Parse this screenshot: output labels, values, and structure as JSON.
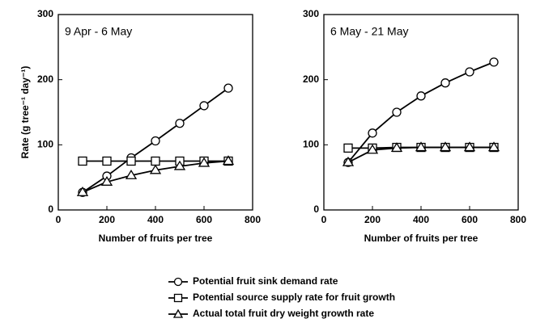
{
  "chart_data": [
    {
      "type": "line",
      "title": "9 Apr - 6 May",
      "xlabel": "Number of fruits per tree",
      "ylabel": "Rate (g tree⁻¹ day⁻¹)",
      "x": [
        100,
        200,
        300,
        400,
        500,
        600,
        700
      ],
      "series": [
        {
          "name": "Potential fruit sink demand rate",
          "color": "#000000",
          "marker": "circle",
          "values": [
            27,
            52,
            80,
            106,
            133,
            160,
            187
          ]
        },
        {
          "name": "Potential source supply rate for fruit growth",
          "color": "#000000",
          "marker": "square",
          "values": [
            75,
            75,
            75,
            75,
            75,
            75,
            75
          ]
        },
        {
          "name": "Actual total fruit dry weight growth rate",
          "color": "#000000",
          "marker": "triangle",
          "values": [
            27,
            43,
            53,
            61,
            67,
            72,
            75
          ]
        }
      ],
      "xlim": [
        0,
        800
      ],
      "xticks": [
        0,
        200,
        400,
        600,
        800
      ],
      "ylim": [
        0,
        300
      ],
      "yticks": [
        0,
        100,
        200,
        300
      ]
    },
    {
      "type": "line",
      "title": "6 May - 21 May",
      "xlabel": "Number of fruits per tree",
      "x": [
        100,
        200,
        300,
        400,
        500,
        600,
        700
      ],
      "series": [
        {
          "color": "#000000",
          "marker": "circle",
          "values": [
            73,
            118,
            150,
            175,
            195,
            212,
            227
          ]
        },
        {
          "color": "#000000",
          "marker": "square",
          "values": [
            95,
            95,
            96,
            96,
            96,
            96,
            96
          ]
        },
        {
          "color": "#000000",
          "marker": "triangle",
          "values": [
            73,
            92,
            95,
            96,
            96,
            96,
            96
          ]
        }
      ],
      "xlim": [
        0,
        800
      ],
      "xticks": [
        0,
        200,
        400,
        600,
        800
      ],
      "ylim": [
        0,
        300
      ],
      "yticks": [
        0,
        100,
        200,
        300
      ]
    }
  ]
}
